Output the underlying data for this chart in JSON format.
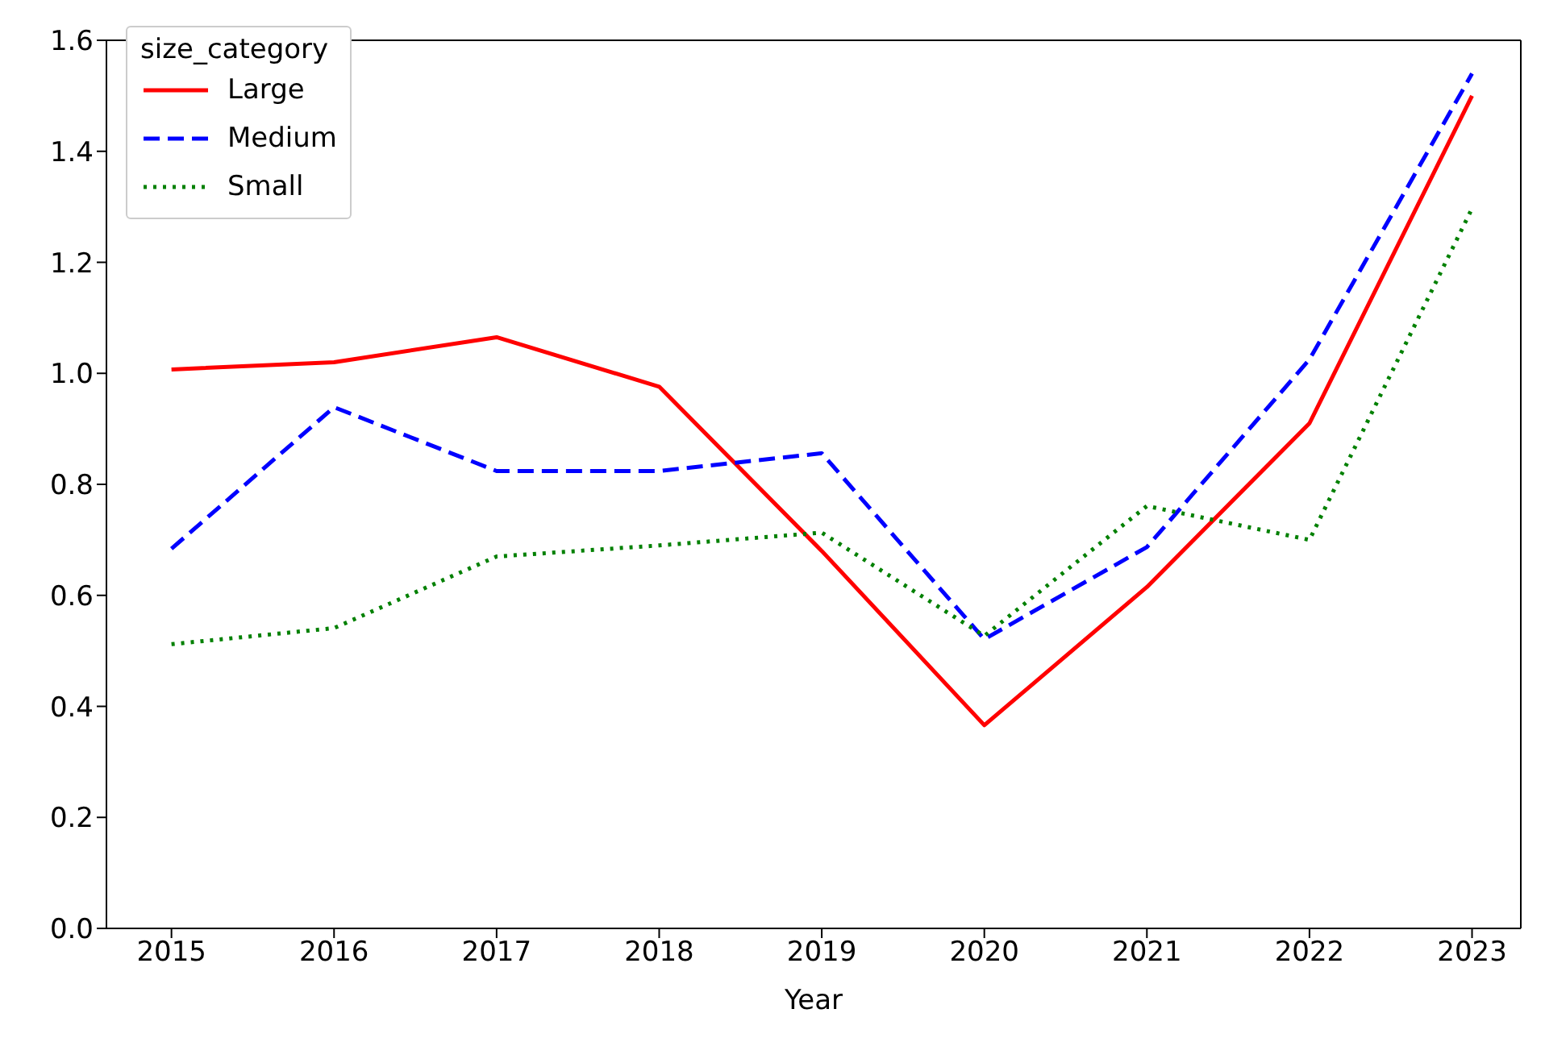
{
  "chart_data": {
    "type": "line",
    "xlabel": "Year",
    "legend_title": "size_category",
    "legend": "top left",
    "grid": false,
    "marker": "none",
    "x": [
      2015,
      2016,
      2017,
      2018,
      2019,
      2020,
      2021,
      2022,
      2023
    ],
    "xlim": [
      2014.6,
      2023.3
    ],
    "xticks": [
      2015,
      2016,
      2017,
      2018,
      2019,
      2020,
      2021,
      2022,
      2023
    ],
    "ylim": [
      0,
      1.6
    ],
    "yticks": [
      {
        "value": 0,
        "label": "0.0"
      },
      {
        "value": 0.2,
        "label": "0.2"
      },
      {
        "value": 0.4,
        "label": "0.4"
      },
      {
        "value": 0.6,
        "label": "0.6"
      },
      {
        "value": 0.8,
        "label": "0.8"
      },
      {
        "value": 1,
        "label": "1.0"
      },
      {
        "value": 1.2,
        "label": "1.2"
      },
      {
        "value": 1.4,
        "label": "1.4"
      },
      {
        "value": 1.6,
        "label": "1.6"
      }
    ],
    "series": [
      {
        "name": "Large",
        "color": "#ff0000",
        "line_style": "solid",
        "values": [
          1.007,
          1.02,
          1.065,
          0.976,
          0.68,
          0.366,
          0.615,
          0.91,
          1.5
        ]
      },
      {
        "name": "Medium",
        "color": "#0000ff",
        "line_style": "dashed",
        "values": [
          0.684,
          0.939,
          0.824,
          0.824,
          0.856,
          0.521,
          0.687,
          1.025,
          1.54
        ]
      },
      {
        "name": "Small",
        "color": "#008000",
        "line_style": "dotted",
        "values": [
          0.512,
          0.541,
          0.67,
          0.69,
          0.713,
          0.527,
          0.761,
          0.7,
          1.297
        ]
      }
    ]
  }
}
